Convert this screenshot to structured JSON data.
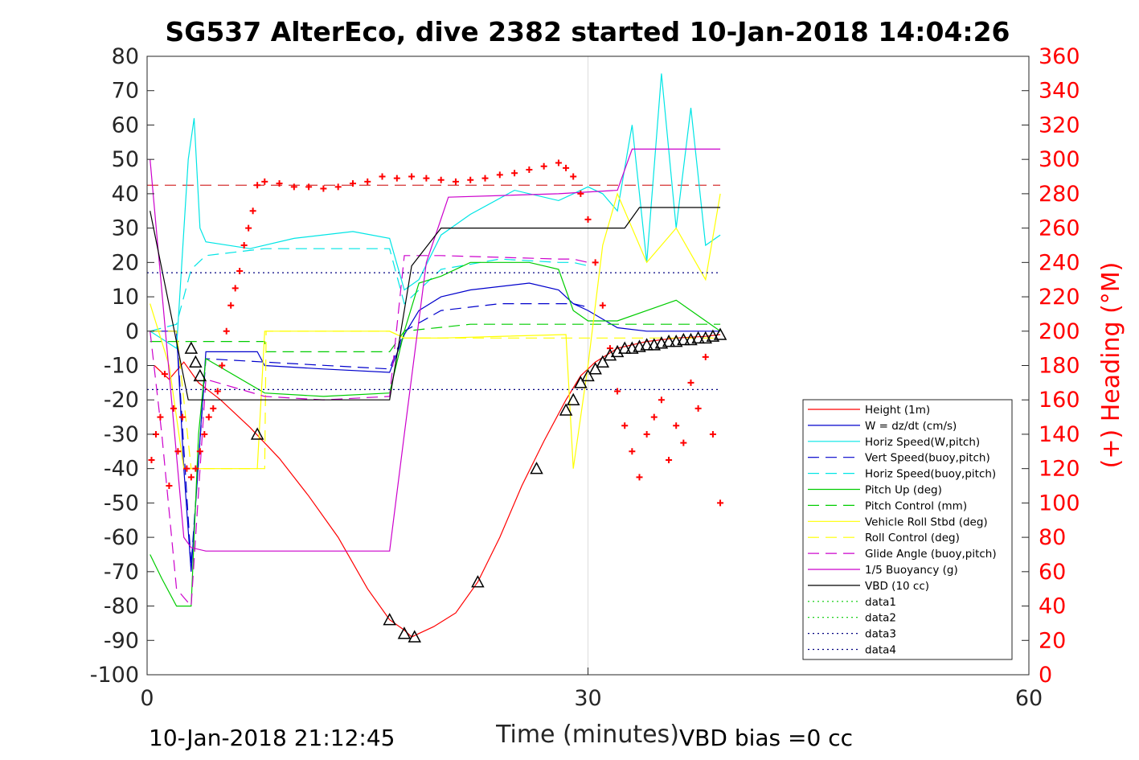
{
  "chart_data": {
    "type": "line",
    "title": "SG537 AlterEco, dive 2382 started 10-Jan-2018 14:04:26",
    "xlabel": "Time (minutes)",
    "ylabel": "",
    "y2label": "(+) Heading (°M)",
    "xlim": [
      0,
      60
    ],
    "ylim": [
      -100,
      80
    ],
    "y2lim": [
      0,
      360
    ],
    "xticks": [
      "0",
      "30",
      "60"
    ],
    "yticks": [
      "80",
      "70",
      "60",
      "50",
      "40",
      "30",
      "20",
      "10",
      "0",
      "-10",
      "-20",
      "-30",
      "-40",
      "-50",
      "-60",
      "-70",
      "-80",
      "-90",
      "-100"
    ],
    "y2ticks": [
      "360",
      "340",
      "320",
      "300",
      "280",
      "260",
      "240",
      "220",
      "200",
      "180",
      "160",
      "140",
      "120",
      "100",
      "80",
      "60",
      "40",
      "20",
      "0"
    ],
    "grid": "x-at-30",
    "legend_position": "lower-right",
    "footer_left": "10-Jan-2018 21:12:45",
    "footer_right": "VBD bias =0 cc",
    "colors": {
      "height": "#ff0000",
      "w": "#0000cc",
      "horiz_speed": "#00e5e5",
      "pitch": "#00cc00",
      "roll": "#ffff00",
      "glide": "#cc00cc",
      "buoyancy": "#cc00cc",
      "vbd": "#000000",
      "heading": "#ff0000"
    },
    "series": [
      {
        "name": "Height (1m)",
        "color": "#ff0000",
        "style": "solid",
        "x": [
          0.5,
          1.5,
          2.5,
          3.5,
          5,
          7,
          9,
          11,
          13,
          15,
          16.5,
          17.5,
          18,
          18.5,
          19.5,
          21,
          22.5,
          24,
          25.5,
          27,
          28.5,
          29.5,
          30.5,
          32,
          34,
          36,
          38,
          39
        ],
        "y": [
          -10,
          -14,
          -9,
          -15,
          -20,
          -28,
          -37,
          -48,
          -60,
          -75,
          -84,
          -87,
          -89,
          -88,
          -86,
          -82,
          -73,
          -60,
          -45,
          -32,
          -20,
          -13,
          -9,
          -5,
          -3,
          -2,
          -1.5,
          -1
        ]
      },
      {
        "name": "W = dz/dt (cm/s)",
        "color": "#0000cc",
        "style": "solid",
        "x": [
          0.2,
          2,
          2.5,
          3,
          4,
          7.5,
          8,
          12,
          16.5,
          17.5,
          18.5,
          20,
          22,
          26,
          28,
          29,
          30,
          32,
          34,
          36,
          38,
          39
        ],
        "y": [
          0,
          0,
          -40,
          -70,
          -6,
          -6,
          -10,
          -11,
          -12,
          -1,
          6,
          10,
          12,
          14,
          12,
          8,
          6,
          1,
          0,
          0,
          0,
          0
        ]
      },
      {
        "name": "Horiz Speed(W,pitch)",
        "color": "#00e5e5",
        "style": "solid",
        "x": [
          0.2,
          2,
          2.8,
          3.2,
          3.6,
          4,
          7,
          10,
          14,
          16.5,
          17.5,
          18.5,
          20,
          22,
          25,
          28,
          29,
          30,
          31,
          32,
          33,
          34,
          35,
          36,
          37,
          38,
          39
        ],
        "y": [
          0,
          -5,
          50,
          62,
          30,
          26,
          24,
          27,
          29,
          27,
          12,
          15,
          28,
          34,
          41,
          38,
          40,
          42,
          40,
          35,
          60,
          20,
          75,
          30,
          65,
          25,
          28
        ]
      },
      {
        "name": "Vert Speed(buoy,pitch)",
        "color": "#0000cc",
        "style": "dashed",
        "x": [
          0.2,
          2,
          3,
          4,
          8,
          16.5,
          17.5,
          20,
          24,
          28,
          29,
          30
        ],
        "y": [
          0,
          0,
          -68,
          -8,
          -9,
          -11,
          0,
          6,
          8,
          8,
          8,
          7
        ]
      },
      {
        "name": "Horiz Speed(buoy,pitch)",
        "color": "#00e5e5",
        "style": "dashed",
        "x": [
          0.2,
          2,
          3,
          4,
          8,
          16.5,
          17.5,
          20,
          24,
          28,
          29,
          30
        ],
        "y": [
          0,
          2,
          18,
          22,
          24,
          24,
          8,
          18,
          21,
          20,
          20,
          19
        ]
      },
      {
        "name": "Pitch Up (deg)",
        "color": "#00cc00",
        "style": "solid",
        "x": [
          0.2,
          1,
          2,
          3,
          3.5,
          4,
          8,
          12,
          16.5,
          17.5,
          18.5,
          20,
          22,
          26,
          28,
          29,
          30,
          32,
          36,
          39
        ],
        "y": [
          -65,
          -72,
          -80,
          -80,
          -30,
          -8,
          -18,
          -19,
          -18,
          0,
          14,
          16,
          20,
          20,
          18,
          6,
          3,
          3,
          9,
          0
        ]
      },
      {
        "name": "Pitch Control (mm)",
        "color": "#00cc00",
        "style": "dashed",
        "x": [
          0.2,
          2,
          3,
          8,
          8.1,
          16.5,
          17.5,
          22,
          28,
          29,
          30,
          39
        ],
        "y": [
          -3,
          -3,
          -3,
          -3,
          -6,
          -6,
          0,
          2,
          2,
          2,
          2,
          2
        ]
      },
      {
        "name": "Vehicle Roll Stbd (deg)",
        "color": "#ffff00",
        "style": "solid",
        "x": [
          0.2,
          1.5,
          2.5,
          3,
          4,
          7.5,
          8,
          12,
          16.5,
          17.5,
          20,
          28.5,
          29,
          30,
          31,
          32,
          34,
          36,
          38,
          39
        ],
        "y": [
          8,
          -10,
          -40,
          -40,
          -40,
          -40,
          0,
          0,
          0,
          -2,
          -2,
          -1,
          -40,
          -10,
          25,
          40,
          20,
          30,
          15,
          40
        ]
      },
      {
        "name": "Roll Control (deg)",
        "color": "#ffff00",
        "style": "dashed",
        "x": [
          0.2,
          2,
          3,
          8,
          8.1,
          16.5,
          17.5,
          28.5,
          30,
          39
        ],
        "y": [
          0,
          0,
          -40,
          -40,
          0,
          0,
          -2,
          -2,
          -2,
          -2
        ]
      },
      {
        "name": "Glide Angle (buoy,pitch)",
        "color": "#cc00cc",
        "style": "dashed",
        "x": [
          0.2,
          1,
          2,
          3,
          4,
          8,
          12,
          16.5,
          17.5,
          20,
          28,
          29,
          30
        ],
        "y": [
          0,
          -30,
          -75,
          -80,
          -14,
          -19,
          -20,
          -19,
          22,
          22,
          21,
          21,
          20
        ]
      },
      {
        "name": "1/5 Buoyancy (g)",
        "color": "#cc00cc",
        "style": "solid",
        "x": [
          0.2,
          2.5,
          3,
          4,
          16.5,
          17.5,
          19,
          20.5,
          28,
          32,
          33,
          39
        ],
        "y": [
          50,
          -60,
          -63,
          -64,
          -64,
          -30,
          20,
          39,
          40,
          41,
          53,
          53
        ]
      },
      {
        "name": "VBD (10 cc)",
        "color": "#000000",
        "style": "solid",
        "x": [
          0.2,
          2.8,
          3.5,
          16.5,
          18,
          20,
          29.5,
          32.5,
          33.5,
          39
        ],
        "y": [
          35,
          -20,
          -20,
          -20,
          19,
          30,
          30,
          30,
          36,
          36
        ]
      },
      {
        "name": "data1",
        "color": "#00cc00",
        "style": "dotted",
        "x": [],
        "y": []
      },
      {
        "name": "data2",
        "color": "#00cc00",
        "style": "dotted",
        "x": [],
        "y": []
      },
      {
        "name": "data3",
        "color": "#000080",
        "style": "dotted",
        "x": [
          0,
          39
        ],
        "y": [
          17,
          17
        ]
      },
      {
        "name": "data4",
        "color": "#000080",
        "style": "dotted",
        "x": [
          0,
          39
        ],
        "y": [
          -17,
          -17
        ]
      }
    ],
    "reference_lines": [
      {
        "color": "#cc0000",
        "style": "dashed",
        "axis": "y2",
        "value": 285,
        "x": [
          0,
          39
        ]
      }
    ],
    "heading_points": {
      "x": [
        0.3,
        0.6,
        0.9,
        1.2,
        1.5,
        1.8,
        2.1,
        2.4,
        2.7,
        3.0,
        3.3,
        3.6,
        3.9,
        4.2,
        4.5,
        4.8,
        5.1,
        5.4,
        5.7,
        6.0,
        6.3,
        6.6,
        6.9,
        7.2,
        7.5,
        8,
        9,
        10,
        11,
        12,
        13,
        14,
        15,
        16,
        17,
        18,
        19,
        20,
        21,
        22,
        23,
        24,
        25,
        26,
        27,
        28,
        28.5,
        29,
        29.5,
        30,
        30.5,
        31,
        31.5,
        32,
        32.5,
        33,
        33.5,
        34,
        34.5,
        35,
        35.5,
        36,
        36.5,
        37,
        37.5,
        38,
        38.5,
        39
      ],
      "y": [
        125,
        140,
        150,
        175,
        110,
        155,
        130,
        150,
        120,
        115,
        120,
        130,
        140,
        150,
        155,
        165,
        180,
        200,
        215,
        225,
        235,
        250,
        260,
        270,
        285,
        287,
        286,
        284,
        284,
        283,
        284,
        286,
        287,
        290,
        289,
        290,
        289,
        288,
        287,
        288,
        289,
        291,
        292,
        294,
        296,
        298,
        295,
        290,
        280,
        265,
        240,
        215,
        190,
        165,
        145,
        130,
        115,
        140,
        150,
        160,
        125,
        145,
        135,
        170,
        155,
        185,
        140,
        100
      ]
    },
    "markers": {
      "x": [
        3.0,
        3.3,
        3.6,
        7.5,
        16.5,
        17.5,
        18.2,
        22.5,
        26.5,
        28.5,
        29,
        29.5,
        30,
        30.5,
        31,
        31.5,
        32,
        32.5,
        33,
        33.5,
        34,
        34.5,
        35,
        35.5,
        36,
        36.5,
        37,
        37.5,
        38,
        38.5,
        39
      ],
      "y": [
        -5,
        -9,
        -13,
        -30,
        -84,
        -88,
        -89,
        -73,
        -40,
        -23,
        -20,
        -15,
        -13,
        -11,
        -9,
        -7,
        -6,
        -5,
        -5,
        -4.5,
        -4,
        -4,
        -3.5,
        -3,
        -3,
        -2.5,
        -2.5,
        -2,
        -2,
        -1.5,
        -1
      ]
    }
  }
}
